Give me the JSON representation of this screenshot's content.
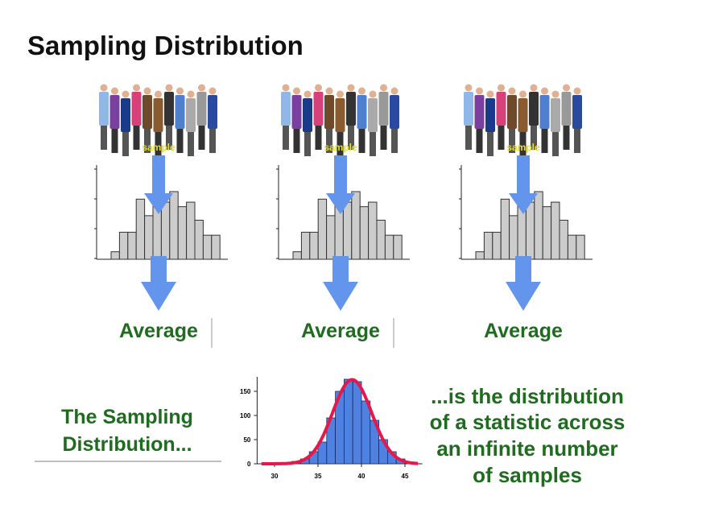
{
  "title": "Sampling Distribution",
  "panels": {
    "sample_label": "sample",
    "average_label": "Average",
    "histogram": {
      "type": "bar",
      "values": [
        0.5,
        1.8,
        1.8,
        4,
        2.9,
        5.6,
        3.8,
        4.5,
        3.5,
        3.8,
        2.6,
        1.6,
        1.6
      ],
      "ylim": [
        0,
        6
      ],
      "color": "#cccccc"
    }
  },
  "sampling_distribution": {
    "label": [
      "The Sampling",
      "Distribution..."
    ],
    "description": [
      "...is the distribution",
      "of a statistic across",
      "an infinite number",
      "of samples"
    ],
    "chart_data": {
      "type": "histogram",
      "bins": [
        31,
        32,
        33,
        34,
        35,
        36,
        37,
        38,
        39,
        40,
        41,
        42,
        43,
        44,
        45
      ],
      "values": [
        2,
        5,
        10,
        25,
        45,
        95,
        150,
        175,
        170,
        130,
        90,
        50,
        25,
        10
      ],
      "xlim": [
        28,
        47
      ],
      "ylim": [
        0,
        180
      ],
      "xticks": [
        30,
        35,
        40,
        45
      ],
      "yticks": [
        0,
        50,
        100,
        150
      ],
      "color": "#4f81e0",
      "curve_color": "#e8174a"
    }
  }
}
